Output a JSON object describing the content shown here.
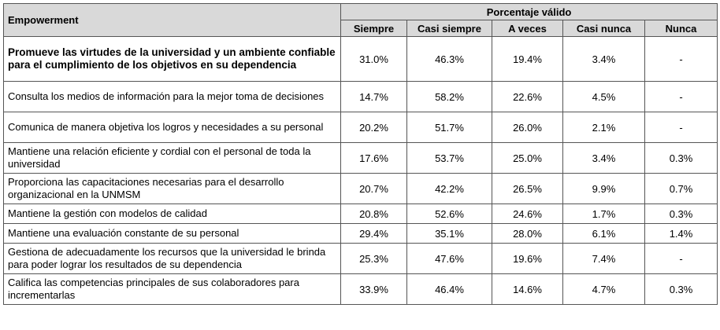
{
  "table": {
    "dimension_header": "Empowerment",
    "group_header": "Porcentaje válido",
    "columns": [
      "Siempre",
      "Casi siempre",
      "A veces",
      "Casi nunca",
      "Nunca"
    ],
    "rows": [
      {
        "label": "Promueve las virtudes de la universidad y un ambiente confiable para el cumplimiento de los objetivos en su dependencia",
        "values": [
          "31.0%",
          "46.3%",
          "19.4%",
          "3.4%",
          "-"
        ]
      },
      {
        "label": "Consulta los medios de información para la mejor toma de decisiones",
        "values": [
          "14.7%",
          "58.2%",
          "22.6%",
          "4.5%",
          "-"
        ]
      },
      {
        "label": "Comunica de manera objetiva los logros y necesidades a su personal",
        "values": [
          "20.2%",
          "51.7%",
          "26.0%",
          "2.1%",
          "-"
        ]
      },
      {
        "label": "Mantiene una relación eficiente y cordial con el personal de toda la universidad",
        "values": [
          "17.6%",
          "53.7%",
          "25.0%",
          "3.4%",
          "0.3%"
        ]
      },
      {
        "label": "Proporciona las capacitaciones necesarias para el desarrollo organizacional en la UNMSM",
        "values": [
          "20.7%",
          "42.2%",
          "26.5%",
          "9.9%",
          "0.7%"
        ]
      },
      {
        "label": "Mantiene la gestión con modelos de calidad",
        "values": [
          "20.8%",
          "52.6%",
          "24.6%",
          "1.7%",
          "0.3%"
        ]
      },
      {
        "label": "Mantiene una evaluación constante de su personal",
        "values": [
          "29.4%",
          "35.1%",
          "28.0%",
          "6.1%",
          "1.4%"
        ]
      },
      {
        "label": "Gestiona de adecuadamente los recursos que la universidad le brinda para poder lograr los resultados de su dependencia",
        "values": [
          "25.3%",
          "47.6%",
          "19.6%",
          "7.4%",
          "-"
        ]
      },
      {
        "label": "Califica las competencias principales de sus colaboradores para incrementarlas",
        "values": [
          "33.9%",
          "46.4%",
          "14.6%",
          "4.7%",
          "0.3%"
        ]
      }
    ]
  }
}
